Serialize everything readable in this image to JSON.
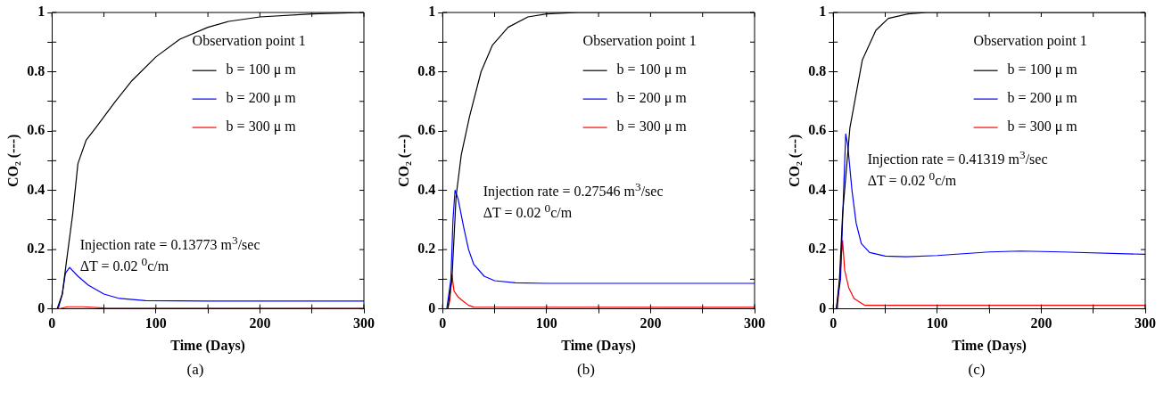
{
  "chart_data": [
    {
      "type": "line",
      "xlabel": "Time (Days)",
      "ylabel": "CO₂ (---)",
      "legend_title": "Observation point 1",
      "legend": "top right",
      "xlim": [
        0,
        300
      ],
      "ylim": [
        0,
        1
      ],
      "xticks": [
        0,
        {
          "value": 50,
          "label": null
        },
        100,
        {
          "value": 150,
          "label": null
        },
        200,
        {
          "value": 250,
          "label": null
        },
        300
      ],
      "yticks": [
        0,
        {
          "value": 0.1,
          "label": null
        },
        0.2,
        {
          "value": 0.3,
          "label": null
        },
        0.4,
        {
          "value": 0.5,
          "label": null
        },
        0.6,
        {
          "value": 0.7,
          "label": null
        },
        0.8,
        {
          "value": 0.9,
          "label": null
        },
        1
      ],
      "annotations": [
        "Injection rate = 0.13773 m$^{3}$/sec",
        "ΔT = 0.02 $^{0}$c/m",
        "(a)"
      ],
      "series": [
        {
          "name": "b = 100 μ m",
          "color": "#000000",
          "x": [
            0,
            5,
            10,
            14,
            20,
            25,
            33,
            42,
            61,
            77,
            100,
            123,
            150,
            170,
            200,
            250,
            300
          ],
          "values": [
            0,
            0,
            0.05,
            0.16,
            0.32,
            0.49,
            0.57,
            0.61,
            0.7,
            0.77,
            0.85,
            0.91,
            0.95,
            0.97,
            0.985,
            0.995,
            1
          ]
        },
        {
          "name": "b = 200 μ m",
          "color": "#0000ff",
          "x": [
            0,
            6,
            10,
            13,
            17,
            25,
            35,
            50,
            65,
            90,
            150,
            300
          ],
          "values": [
            0,
            0,
            0.05,
            0.12,
            0.14,
            0.11,
            0.08,
            0.05,
            0.035,
            0.028,
            0.026,
            0.026
          ]
        },
        {
          "name": "b = 300 μ m",
          "color": "#ff0000",
          "x": [
            0,
            7,
            15,
            30,
            50,
            300
          ],
          "values": [
            0,
            0,
            0.007,
            0.007,
            0.003,
            0.002
          ]
        }
      ]
    },
    {
      "type": "line",
      "xlabel": "Time (Days)",
      "ylabel": "CO₂ (---)",
      "legend_title": "Observation point 1",
      "legend": "top right",
      "xlim": [
        0,
        300
      ],
      "ylim": [
        0,
        1
      ],
      "xticks": [
        0,
        {
          "value": 50,
          "label": null
        },
        100,
        {
          "value": 150,
          "label": null
        },
        200,
        {
          "value": 250,
          "label": null
        },
        300
      ],
      "yticks": [
        0,
        {
          "value": 0.1,
          "label": null
        },
        0.2,
        {
          "value": 0.3,
          "label": null
        },
        0.4,
        {
          "value": 0.5,
          "label": null
        },
        0.6,
        {
          "value": 0.7,
          "label": null
        },
        0.8,
        {
          "value": 0.9,
          "label": null
        },
        1
      ],
      "annotations": [
        "Injection rate = 0.27546 m$^{3}$/sec",
        "ΔT = 0.02 $^{0}$c/m",
        "(b)"
      ],
      "series": [
        {
          "name": "b = 100 μ m",
          "color": "#000000",
          "x": [
            0,
            5,
            9,
            13,
            18,
            26,
            37,
            48,
            63,
            82,
            100,
            130,
            300
          ],
          "values": [
            0,
            0,
            0.1,
            0.38,
            0.52,
            0.65,
            0.8,
            0.89,
            0.95,
            0.985,
            0.995,
            1,
            1
          ]
        },
        {
          "name": "b = 200 μ m",
          "color": "#0000ff",
          "x": [
            0,
            4,
            8,
            10,
            12,
            15,
            20,
            25,
            30,
            40,
            50,
            70,
            100,
            300
          ],
          "values": [
            0,
            0,
            0.1,
            0.3,
            0.4,
            0.37,
            0.28,
            0.2,
            0.15,
            0.11,
            0.095,
            0.088,
            0.086,
            0.086
          ]
        },
        {
          "name": "b = 300 μ m",
          "color": "#ff0000",
          "x": [
            0,
            5,
            7,
            9,
            11,
            15,
            20,
            25,
            30,
            300
          ],
          "values": [
            0,
            0,
            0.03,
            0.115,
            0.06,
            0.04,
            0.025,
            0.012,
            0.006,
            0.005
          ]
        }
      ]
    },
    {
      "type": "line",
      "xlabel": "Time (Days)",
      "ylabel": "CO₂ (---)",
      "legend_title": "Observation point 1",
      "legend": "top right",
      "xlim": [
        0,
        300
      ],
      "ylim": [
        0,
        1
      ],
      "xticks": [
        0,
        {
          "value": 50,
          "label": null
        },
        100,
        {
          "value": 150,
          "label": null
        },
        200,
        {
          "value": 250,
          "label": null
        },
        300
      ],
      "yticks": [
        0,
        {
          "value": 0.1,
          "label": null
        },
        0.2,
        {
          "value": 0.3,
          "label": null
        },
        0.4,
        {
          "value": 0.5,
          "label": null
        },
        0.6,
        {
          "value": 0.7,
          "label": null
        },
        0.8,
        {
          "value": 0.9,
          "label": null
        },
        1
      ],
      "annotations": [
        "Injection rate = 0.41319 m$^{3}$/sec",
        "ΔT = 0.02 $^{0}$c/m",
        "(c)"
      ],
      "series": [
        {
          "name": "b = 100 μ m",
          "color": "#000000",
          "x": [
            0,
            3,
            6,
            9,
            16,
            28,
            41,
            53,
            72,
            90,
            300
          ],
          "values": [
            0,
            0,
            0.1,
            0.32,
            0.61,
            0.84,
            0.94,
            0.98,
            0.995,
            1,
            1
          ]
        },
        {
          "name": "b = 200 μ m",
          "color": "#0000ff",
          "x": [
            0,
            3,
            7,
            10,
            12,
            14,
            18,
            22,
            27,
            35,
            50,
            70,
            100,
            150,
            180,
            220,
            300
          ],
          "values": [
            0,
            0,
            0.1,
            0.4,
            0.59,
            0.55,
            0.4,
            0.29,
            0.22,
            0.19,
            0.178,
            0.176,
            0.18,
            0.192,
            0.195,
            0.192,
            0.184
          ]
        },
        {
          "name": "b = 300 μ m",
          "color": "#ff0000",
          "x": [
            0,
            4,
            9,
            11,
            15,
            20,
            30,
            300
          ],
          "values": [
            0,
            0,
            0.23,
            0.13,
            0.07,
            0.035,
            0.012,
            0.012
          ]
        }
      ]
    }
  ]
}
